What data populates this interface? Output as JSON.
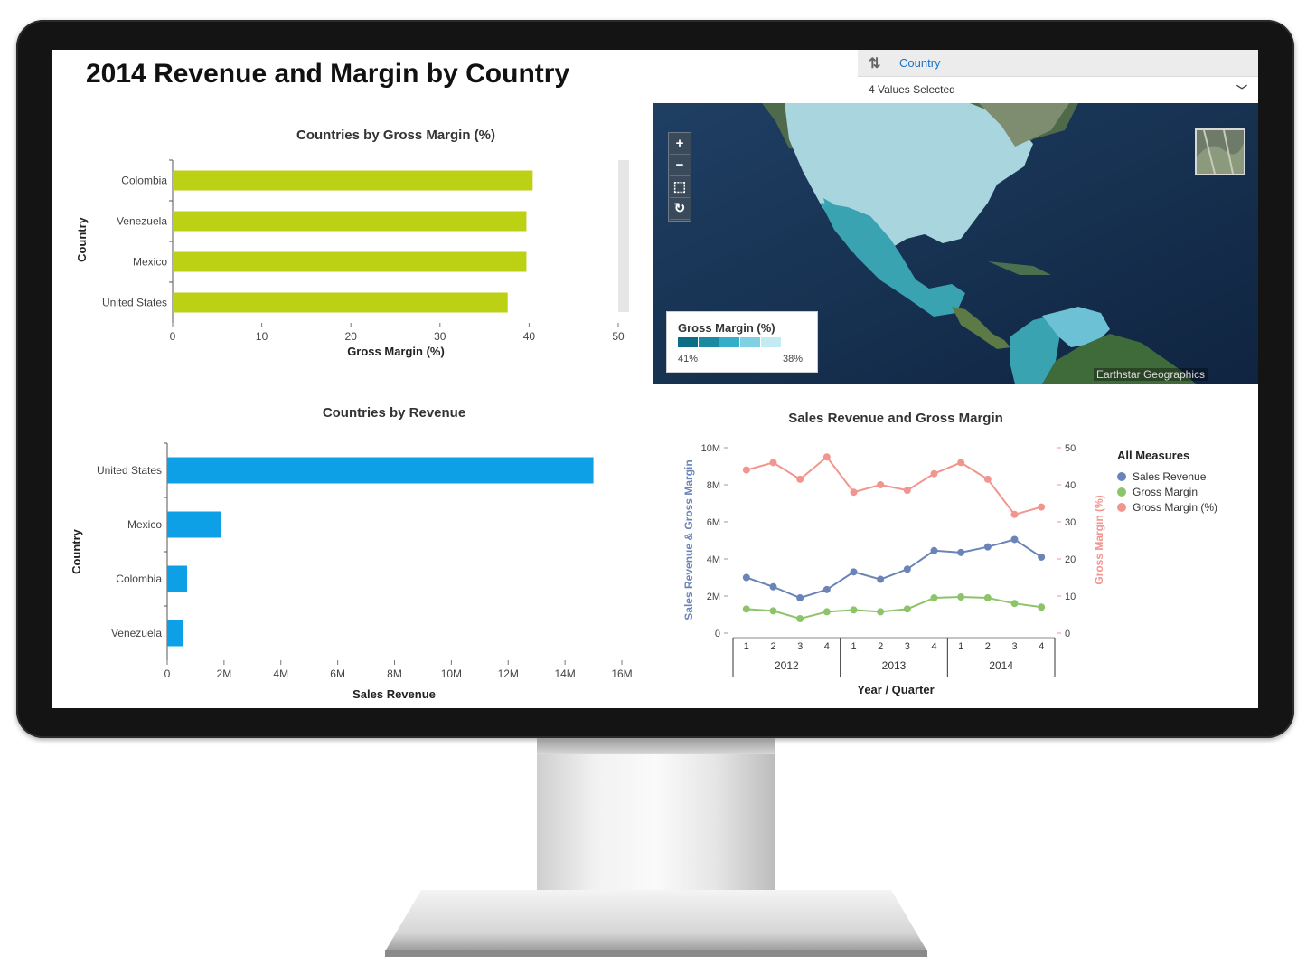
{
  "dashboard": {
    "title": "2014 Revenue and Margin by Country"
  },
  "filter": {
    "label": "Country",
    "value": "4 Values Selected",
    "sort_icon": "sort-icon",
    "chevron_icon": "chevron-down-icon"
  },
  "map": {
    "controls": [
      {
        "name": "zoom-in-button",
        "icon": "plus-icon",
        "glyph": "+"
      },
      {
        "name": "zoom-out-button",
        "icon": "minus-icon",
        "glyph": "−"
      },
      {
        "name": "select-area-button",
        "icon": "select-icon",
        "glyph": "⬚"
      },
      {
        "name": "reset-button",
        "icon": "refresh-icon",
        "glyph": "↻"
      }
    ],
    "legend": {
      "title": "Gross Margin (%)",
      "low_label": "41%",
      "high_label": "38%",
      "colors": [
        "#0b6d86",
        "#1c8aa3",
        "#34aec9",
        "#7fd0e2",
        "#c2ebf3"
      ]
    },
    "credit": "Earthstar Geographics"
  },
  "chart_data": [
    {
      "type": "bar",
      "orientation": "horizontal",
      "title": "Countries by Gross Margin (%)",
      "xlabel": "Gross Margin (%)",
      "ylabel": "Country",
      "categories": [
        "Colombia",
        "Venezuela",
        "Mexico",
        "United States"
      ],
      "values": [
        40.4,
        39.7,
        39.7,
        37.6
      ],
      "xlim": [
        0,
        50
      ],
      "xticks": [
        "0",
        "10",
        "20",
        "30",
        "40",
        "50"
      ],
      "color": "#bcd014"
    },
    {
      "type": "bar",
      "orientation": "horizontal",
      "title": "Countries by Revenue",
      "xlabel": "Sales Revenue",
      "ylabel": "Country",
      "categories": [
        "United States",
        "Mexico",
        "Colombia",
        "Venezuela"
      ],
      "values": [
        15000000,
        1900000,
        700000,
        550000
      ],
      "xlim": [
        0,
        16000000
      ],
      "xticks": [
        "0",
        "2M",
        "4M",
        "6M",
        "8M",
        "10M",
        "12M",
        "14M",
        "16M"
      ],
      "color": "#0da0e6"
    },
    {
      "type": "line",
      "title": "Sales Revenue and Gross Margin",
      "xlabel": "Year / Quarter",
      "ylabel": "Sales Revenue & Gross Margin",
      "y2label": "Gross Margin (%)",
      "legend_title": "All Measures",
      "legend_position": "right",
      "quarters": [
        "1",
        "2",
        "3",
        "4",
        "1",
        "2",
        "3",
        "4",
        "1",
        "2",
        "3",
        "4"
      ],
      "years": [
        "2012",
        "2013",
        "2014"
      ],
      "ylim": [
        0,
        10000000
      ],
      "yticks": [
        "0",
        "2M",
        "4M",
        "6M",
        "8M",
        "10M"
      ],
      "y2lim": [
        0,
        50
      ],
      "y2ticks": [
        "0",
        "10",
        "20",
        "30",
        "40",
        "50"
      ],
      "series": [
        {
          "name": "Sales Revenue",
          "axis": "left",
          "color": "#6b84b8",
          "values": [
            3000000,
            2500000,
            1900000,
            2350000,
            3300000,
            2900000,
            3450000,
            4450000,
            4350000,
            4650000,
            5050000,
            4100000
          ]
        },
        {
          "name": "Gross Margin",
          "axis": "left",
          "color": "#8dc46a",
          "values": [
            1300000,
            1200000,
            780000,
            1150000,
            1250000,
            1150000,
            1300000,
            1900000,
            1950000,
            1900000,
            1600000,
            1400000
          ]
        },
        {
          "name": "Gross Margin (%)",
          "axis": "right",
          "color": "#f2958f",
          "values": [
            44,
            46,
            41.5,
            47.5,
            38,
            40,
            38.5,
            43,
            46,
            41.5,
            32,
            34
          ]
        }
      ]
    }
  ]
}
